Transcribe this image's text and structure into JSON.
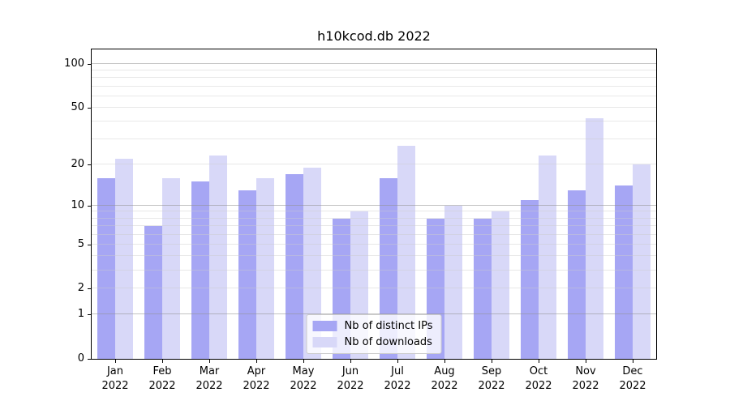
{
  "title": "h10kcod.db 2022",
  "chart_data": {
    "type": "bar",
    "title": "h10kcod.db 2022",
    "xlabel": "",
    "ylabel": "",
    "year_label": "2022",
    "categories": [
      "Jan",
      "Feb",
      "Mar",
      "Apr",
      "May",
      "Jun",
      "Jul",
      "Aug",
      "Sep",
      "Oct",
      "Nov",
      "Dec"
    ],
    "series": [
      {
        "key": "distinct-ips",
        "name": "Nb of distinct IPs",
        "color": "#a6a6f4",
        "values": [
          16,
          7,
          15,
          13,
          17,
          8,
          16,
          8,
          8,
          11,
          13,
          14
        ]
      },
      {
        "key": "downloads",
        "name": "Nb of downloads",
        "color": "#d8d8f8",
        "values": [
          22,
          16,
          23,
          16,
          19,
          9,
          27,
          10,
          9,
          23,
          42,
          20
        ]
      }
    ],
    "yscale": "log1p",
    "ylim": [
      0,
      126
    ],
    "yticks": [
      0,
      1,
      2,
      5,
      10,
      20,
      50,
      100
    ],
    "grid_major": [
      1,
      10,
      100
    ],
    "grid_minor": [
      2,
      3,
      4,
      5,
      6,
      7,
      8,
      9,
      20,
      30,
      40,
      50,
      60,
      70,
      80,
      90
    ],
    "grid": "on",
    "legend_position": "lower center"
  }
}
